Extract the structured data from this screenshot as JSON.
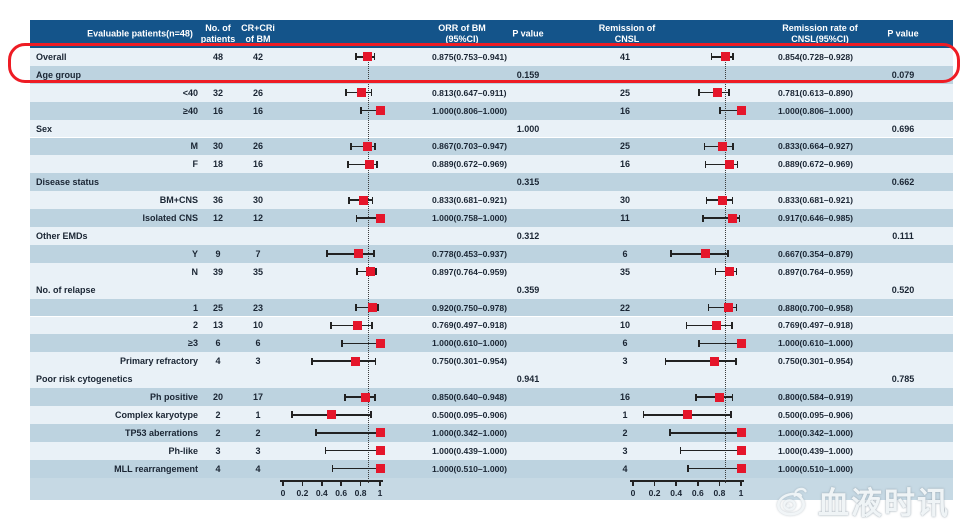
{
  "figure": {
    "watermark": {
      "text": "血液时讯",
      "icon": "weibo-eye-icon"
    },
    "annotation": {
      "kind": "highlight-box",
      "target": "Overall row",
      "color": "#ee1c24"
    }
  },
  "colors": {
    "header_bg": "#14548a",
    "header_text": "#ffffff",
    "row_light": "#e9f1f7",
    "row_medium": "#bdd3e0",
    "axis_band": "#c6d9e4",
    "marker_red": "#e5162b",
    "annotation_red": "#ee1c24",
    "ink": "#1a2533"
  },
  "chart_data": {
    "type": "table",
    "subtype": "forest-plot",
    "title": "",
    "columns": [
      "Evaluable patients(n=48)",
      "No. of\npatients",
      "CR+CRi\nof BM",
      "ORR of BM\n(95%CI)",
      "P value",
      "Remission of\nCNSL",
      "Remission rate of\nCNSL(95%CI)",
      "P value"
    ],
    "axis": {
      "min": 0,
      "max": 1,
      "ticks": [
        {
          "v": 0,
          "label": "0"
        },
        {
          "v": 0.2,
          "label": "0.2"
        },
        {
          "v": 0.4,
          "label": "0.4"
        },
        {
          "v": 0.6,
          "label": "0.6"
        },
        {
          "v": 0.8,
          "label": "0.8"
        },
        {
          "v": 1,
          "label": "1"
        }
      ]
    },
    "reference_lines": {
      "orr": 0.875,
      "cnsl": 0.854
    },
    "rows": [
      {
        "label": "Overall",
        "category": false,
        "align": "left",
        "shade": "light",
        "n": "48",
        "cr": "42",
        "orr": {
          "est": 0.875,
          "lo": 0.753,
          "hi": 0.941,
          "text": "0.875(0.753–0.941)"
        },
        "p_orr": "",
        "cnsl_n": "41",
        "cnsl": {
          "est": 0.854,
          "lo": 0.728,
          "hi": 0.928,
          "text": "0.854(0.728–0.928)"
        },
        "p_cnsl": ""
      },
      {
        "label": "Age group",
        "category": true,
        "shade": "medium",
        "p_orr": "0.159",
        "p_cnsl": "0.079"
      },
      {
        "label": "<40",
        "category": false,
        "shade": "light",
        "n": "32",
        "cr": "26",
        "orr": {
          "est": 0.813,
          "lo": 0.647,
          "hi": 0.911,
          "text": "0.813(0.647–0.911)"
        },
        "p_orr": "",
        "cnsl_n": "25",
        "cnsl": {
          "est": 0.781,
          "lo": 0.613,
          "hi": 0.89,
          "text": "0.781(0.613–0.890)"
        },
        "p_cnsl": ""
      },
      {
        "label": "≥40",
        "category": false,
        "shade": "medium",
        "n": "16",
        "cr": "16",
        "orr": {
          "est": 1.0,
          "lo": 0.806,
          "hi": 1.0,
          "text": "1.000(0.806–1.000)"
        },
        "p_orr": "",
        "cnsl_n": "16",
        "cnsl": {
          "est": 1.0,
          "lo": 0.806,
          "hi": 1.0,
          "text": "1.000(0.806–1.000)"
        },
        "p_cnsl": ""
      },
      {
        "label": "Sex",
        "category": true,
        "shade": "light",
        "p_orr": "1.000",
        "p_cnsl": "0.696"
      },
      {
        "label": "M",
        "category": false,
        "shade": "medium",
        "n": "30",
        "cr": "26",
        "orr": {
          "est": 0.867,
          "lo": 0.703,
          "hi": 0.947,
          "text": "0.867(0.703–0.947)"
        },
        "p_orr": "",
        "cnsl_n": "25",
        "cnsl": {
          "est": 0.833,
          "lo": 0.664,
          "hi": 0.927,
          "text": "0.833(0.664–0.927)"
        },
        "p_cnsl": ""
      },
      {
        "label": "F",
        "category": false,
        "shade": "light",
        "n": "18",
        "cr": "16",
        "orr": {
          "est": 0.889,
          "lo": 0.672,
          "hi": 0.969,
          "text": "0.889(0.672–0.969)"
        },
        "p_orr": "",
        "cnsl_n": "16",
        "cnsl": {
          "est": 0.889,
          "lo": 0.672,
          "hi": 0.969,
          "text": "0.889(0.672–0.969)"
        },
        "p_cnsl": ""
      },
      {
        "label": "Disease status",
        "category": true,
        "shade": "medium",
        "p_orr": "0.315",
        "p_cnsl": "0.662"
      },
      {
        "label": "BM+CNS",
        "category": false,
        "shade": "light",
        "n": "36",
        "cr": "30",
        "orr": {
          "est": 0.833,
          "lo": 0.681,
          "hi": 0.921,
          "text": "0.833(0.681–0.921)"
        },
        "p_orr": "",
        "cnsl_n": "30",
        "cnsl": {
          "est": 0.833,
          "lo": 0.681,
          "hi": 0.921,
          "text": "0.833(0.681–0.921)"
        },
        "p_cnsl": ""
      },
      {
        "label": "Isolated CNS",
        "category": false,
        "shade": "medium",
        "n": "12",
        "cr": "12",
        "orr": {
          "est": 1.0,
          "lo": 0.758,
          "hi": 1.0,
          "text": "1.000(0.758–1.000)"
        },
        "p_orr": "",
        "cnsl_n": "11",
        "cnsl": {
          "est": 0.917,
          "lo": 0.646,
          "hi": 0.985,
          "text": "0.917(0.646–0.985)"
        },
        "p_cnsl": ""
      },
      {
        "label": "Other EMDs",
        "category": true,
        "shade": "light",
        "p_orr": "0.312",
        "p_cnsl": "0.111"
      },
      {
        "label": "Y",
        "category": false,
        "shade": "medium",
        "n": "9",
        "cr": "7",
        "orr": {
          "est": 0.778,
          "lo": 0.453,
          "hi": 0.937,
          "text": "0.778(0.453–0.937)"
        },
        "p_orr": "",
        "cnsl_n": "6",
        "cnsl": {
          "est": 0.667,
          "lo": 0.354,
          "hi": 0.879,
          "text": "0.667(0.354–0.879)"
        },
        "p_cnsl": ""
      },
      {
        "label": "N",
        "category": false,
        "shade": "light",
        "n": "39",
        "cr": "35",
        "orr": {
          "est": 0.897,
          "lo": 0.764,
          "hi": 0.959,
          "text": "0.897(0.764–0.959)"
        },
        "p_orr": "",
        "cnsl_n": "35",
        "cnsl": {
          "est": 0.897,
          "lo": 0.764,
          "hi": 0.959,
          "text": "0.897(0.764–0.959)"
        },
        "p_cnsl": ""
      },
      {
        "label": "No. of relapse",
        "category": true,
        "shade": "light",
        "p_orr": "0.359",
        "p_cnsl": "0.520"
      },
      {
        "label": "1",
        "category": false,
        "shade": "medium",
        "n": "25",
        "cr": "23",
        "orr": {
          "est": 0.92,
          "lo": 0.75,
          "hi": 0.978,
          "text": "0.920(0.750–0.978)"
        },
        "p_orr": "",
        "cnsl_n": "22",
        "cnsl": {
          "est": 0.88,
          "lo": 0.7,
          "hi": 0.958,
          "text": "0.880(0.700–0.958)"
        },
        "p_cnsl": ""
      },
      {
        "label": "2",
        "category": false,
        "shade": "light",
        "n": "13",
        "cr": "10",
        "orr": {
          "est": 0.769,
          "lo": 0.497,
          "hi": 0.918,
          "text": "0.769(0.497–0.918)"
        },
        "p_orr": "",
        "cnsl_n": "10",
        "cnsl": {
          "est": 0.769,
          "lo": 0.497,
          "hi": 0.918,
          "text": "0.769(0.497–0.918)"
        },
        "p_cnsl": ""
      },
      {
        "label": "≥3",
        "category": false,
        "shade": "medium",
        "n": "6",
        "cr": "6",
        "orr": {
          "est": 1.0,
          "lo": 0.61,
          "hi": 1.0,
          "text": "1.000(0.610–1.000)"
        },
        "p_orr": "",
        "cnsl_n": "6",
        "cnsl": {
          "est": 1.0,
          "lo": 0.61,
          "hi": 1.0,
          "text": "1.000(0.610–1.000)"
        },
        "p_cnsl": ""
      },
      {
        "label": "Primary refractory",
        "category": false,
        "shade": "light",
        "n": "4",
        "cr": "3",
        "orr": {
          "est": 0.75,
          "lo": 0.301,
          "hi": 0.954,
          "text": "0.750(0.301–0.954)"
        },
        "p_orr": "",
        "cnsl_n": "3",
        "cnsl": {
          "est": 0.75,
          "lo": 0.301,
          "hi": 0.954,
          "text": "0.750(0.301–0.954)"
        },
        "p_cnsl": ""
      },
      {
        "label": "Poor risk cytogenetics",
        "category": true,
        "shade": "light",
        "p_orr": "0.941",
        "p_cnsl": "0.785"
      },
      {
        "label": "Ph positive",
        "category": false,
        "shade": "medium",
        "n": "20",
        "cr": "17",
        "orr": {
          "est": 0.85,
          "lo": 0.64,
          "hi": 0.948,
          "text": "0.850(0.640–0.948)"
        },
        "p_orr": "",
        "cnsl_n": "16",
        "cnsl": {
          "est": 0.8,
          "lo": 0.584,
          "hi": 0.919,
          "text": "0.800(0.584–0.919)"
        },
        "p_cnsl": ""
      },
      {
        "label": "Complex karyotype",
        "category": false,
        "shade": "light",
        "n": "2",
        "cr": "1",
        "orr": {
          "est": 0.5,
          "lo": 0.095,
          "hi": 0.906,
          "text": "0.500(0.095–0.906)"
        },
        "p_orr": "",
        "cnsl_n": "1",
        "cnsl": {
          "est": 0.5,
          "lo": 0.095,
          "hi": 0.906,
          "text": "0.500(0.095–0.906)"
        },
        "p_cnsl": ""
      },
      {
        "label": "TP53 aberrations",
        "category": false,
        "shade": "medium",
        "n": "2",
        "cr": "2",
        "orr": {
          "est": 1.0,
          "lo": 0.342,
          "hi": 1.0,
          "text": "1.000(0.342–1.000)"
        },
        "p_orr": "",
        "cnsl_n": "2",
        "cnsl": {
          "est": 1.0,
          "lo": 0.342,
          "hi": 1.0,
          "text": "1.000(0.342–1.000)"
        },
        "p_cnsl": ""
      },
      {
        "label": "Ph-like",
        "category": false,
        "shade": "light",
        "n": "3",
        "cr": "3",
        "orr": {
          "est": 1.0,
          "lo": 0.439,
          "hi": 1.0,
          "text": "1.000(0.439–1.000)"
        },
        "p_orr": "",
        "cnsl_n": "3",
        "cnsl": {
          "est": 1.0,
          "lo": 0.439,
          "hi": 1.0,
          "text": "1.000(0.439–1.000)"
        },
        "p_cnsl": ""
      },
      {
        "label": "MLL rearrangement",
        "category": false,
        "shade": "medium",
        "n": "4",
        "cr": "4",
        "orr": {
          "est": 1.0,
          "lo": 0.51,
          "hi": 1.0,
          "text": "1.000(0.510–1.000)"
        },
        "p_orr": "",
        "cnsl_n": "4",
        "cnsl": {
          "est": 1.0,
          "lo": 0.51,
          "hi": 1.0,
          "text": "1.000(0.510–1.000)"
        },
        "p_cnsl": ""
      }
    ]
  }
}
